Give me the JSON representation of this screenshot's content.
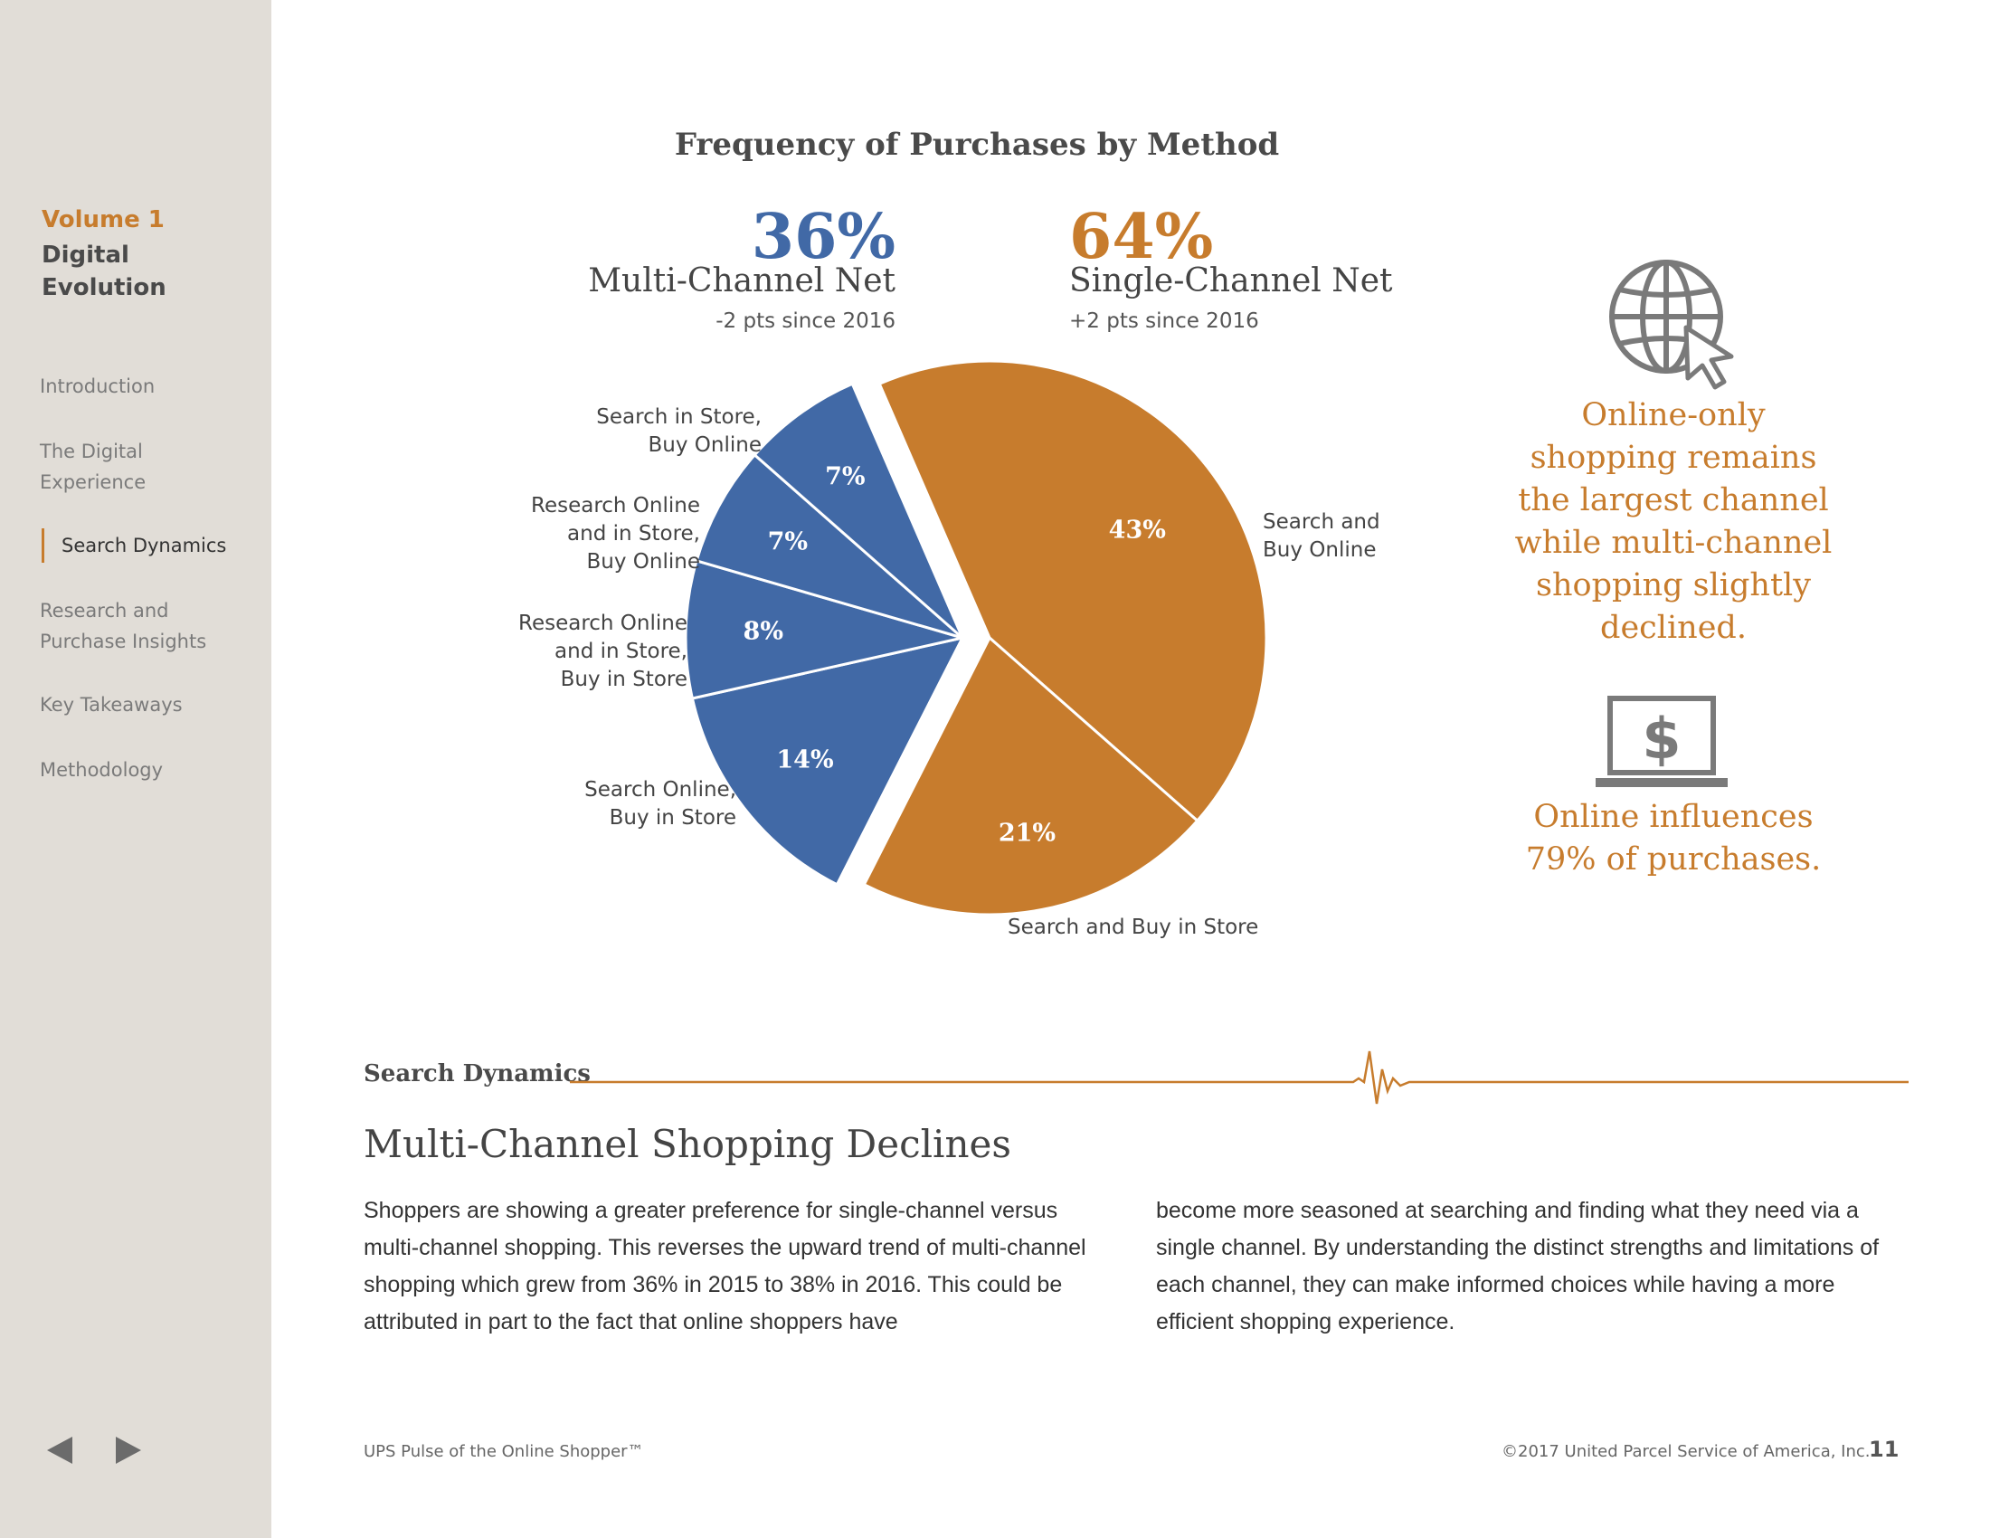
{
  "sidebar": {
    "volume_label": "Volume 1",
    "volume_title": "Digital Evolution",
    "nav_items": [
      {
        "label": "Introduction"
      },
      {
        "label": "The Digital Experience"
      },
      {
        "label": "Search Dynamics",
        "active": true
      },
      {
        "label": "Research and Purchase Insights"
      },
      {
        "label": "Key Takeaways"
      },
      {
        "label": "Methodology"
      }
    ],
    "prev_icon": "triangle-left-icon",
    "next_icon": "triangle-right-icon"
  },
  "chart_data": {
    "type": "pie",
    "title": "Frequency of Purchases by Method",
    "groups": [
      {
        "name": "Multi-Channel Net",
        "value": "36%",
        "change": "-2 pts since 2016",
        "color": "#4169a6"
      },
      {
        "name": "Single-Channel Net",
        "value": "64%",
        "change": "+2 pts since 2016",
        "color": "#c77c2d"
      }
    ],
    "slices": [
      {
        "label": "Search and Buy Online",
        "value": 43,
        "pct_label": "43%",
        "group": "single"
      },
      {
        "label": "Search and Buy in Store",
        "value": 21,
        "pct_label": "21%",
        "group": "single"
      },
      {
        "label": "Search Online, Buy in Store",
        "value": 14,
        "pct_label": "14%",
        "group": "multi"
      },
      {
        "label": "Research Online and in Store, Buy in Store",
        "value": 8,
        "pct_label": "8%",
        "group": "multi"
      },
      {
        "label": "Research Online and in Store, Buy Online",
        "value": 7,
        "pct_label": "7%",
        "group": "multi"
      },
      {
        "label": "Search in Store, Buy Online",
        "value": 7,
        "pct_label": "7%",
        "group": "multi"
      }
    ],
    "colors": {
      "single": "#c77c2d",
      "multi": "#4169a6"
    }
  },
  "slice_label_lines": {
    "search_buy_online": [
      "Search and",
      "Buy Online"
    ],
    "search_buy_store": [
      "Search and Buy in Store"
    ],
    "search_online_buy_store": [
      "Search Online,",
      "Buy in Store"
    ],
    "research_buy_store": [
      "Research Online",
      "and in Store,",
      "Buy in Store"
    ],
    "research_buy_online": [
      "Research Online",
      "and in Store,",
      "Buy Online"
    ],
    "search_store_buy_online": [
      "Search in Store,",
      "Buy Online"
    ]
  },
  "callouts": {
    "globe_icon": "globe-cursor-icon",
    "top_text": "Online-only shopping remains the largest channel while multi-channel shopping slightly declined.",
    "top_lines": [
      "Online-only",
      "shopping remains",
      "the largest channel",
      "while multi-channel",
      "shopping slightly",
      "declined."
    ],
    "laptop_icon": "laptop-dollar-icon",
    "bottom_lines": [
      "Online influences",
      "79% of purchases."
    ]
  },
  "section": {
    "label": "Search Dynamics",
    "heading": "Multi-Channel Shopping Declines",
    "body_left": "Shoppers are showing a greater preference for single-channel versus multi-channel shopping. This reverses the upward trend of multi-channel shopping which grew from 36% in 2015 to 38% in 2016. This could be attributed in part to the fact that online shoppers have",
    "body_right": "become more seasoned at searching and finding what they need via a single channel. By understanding the distinct strengths and limitations of each channel, they can make informed choices while having a more efficient shopping experience."
  },
  "footer": {
    "left": "UPS Pulse of the Online Shopper™",
    "right": "©2017 United Parcel Service of America, Inc.",
    "page": "11"
  },
  "colors": {
    "accent_orange": "#c77c2d",
    "accent_blue": "#4169a6",
    "sidebar_bg": "#e1ddd7",
    "icon_gray": "#7a7a7a"
  }
}
